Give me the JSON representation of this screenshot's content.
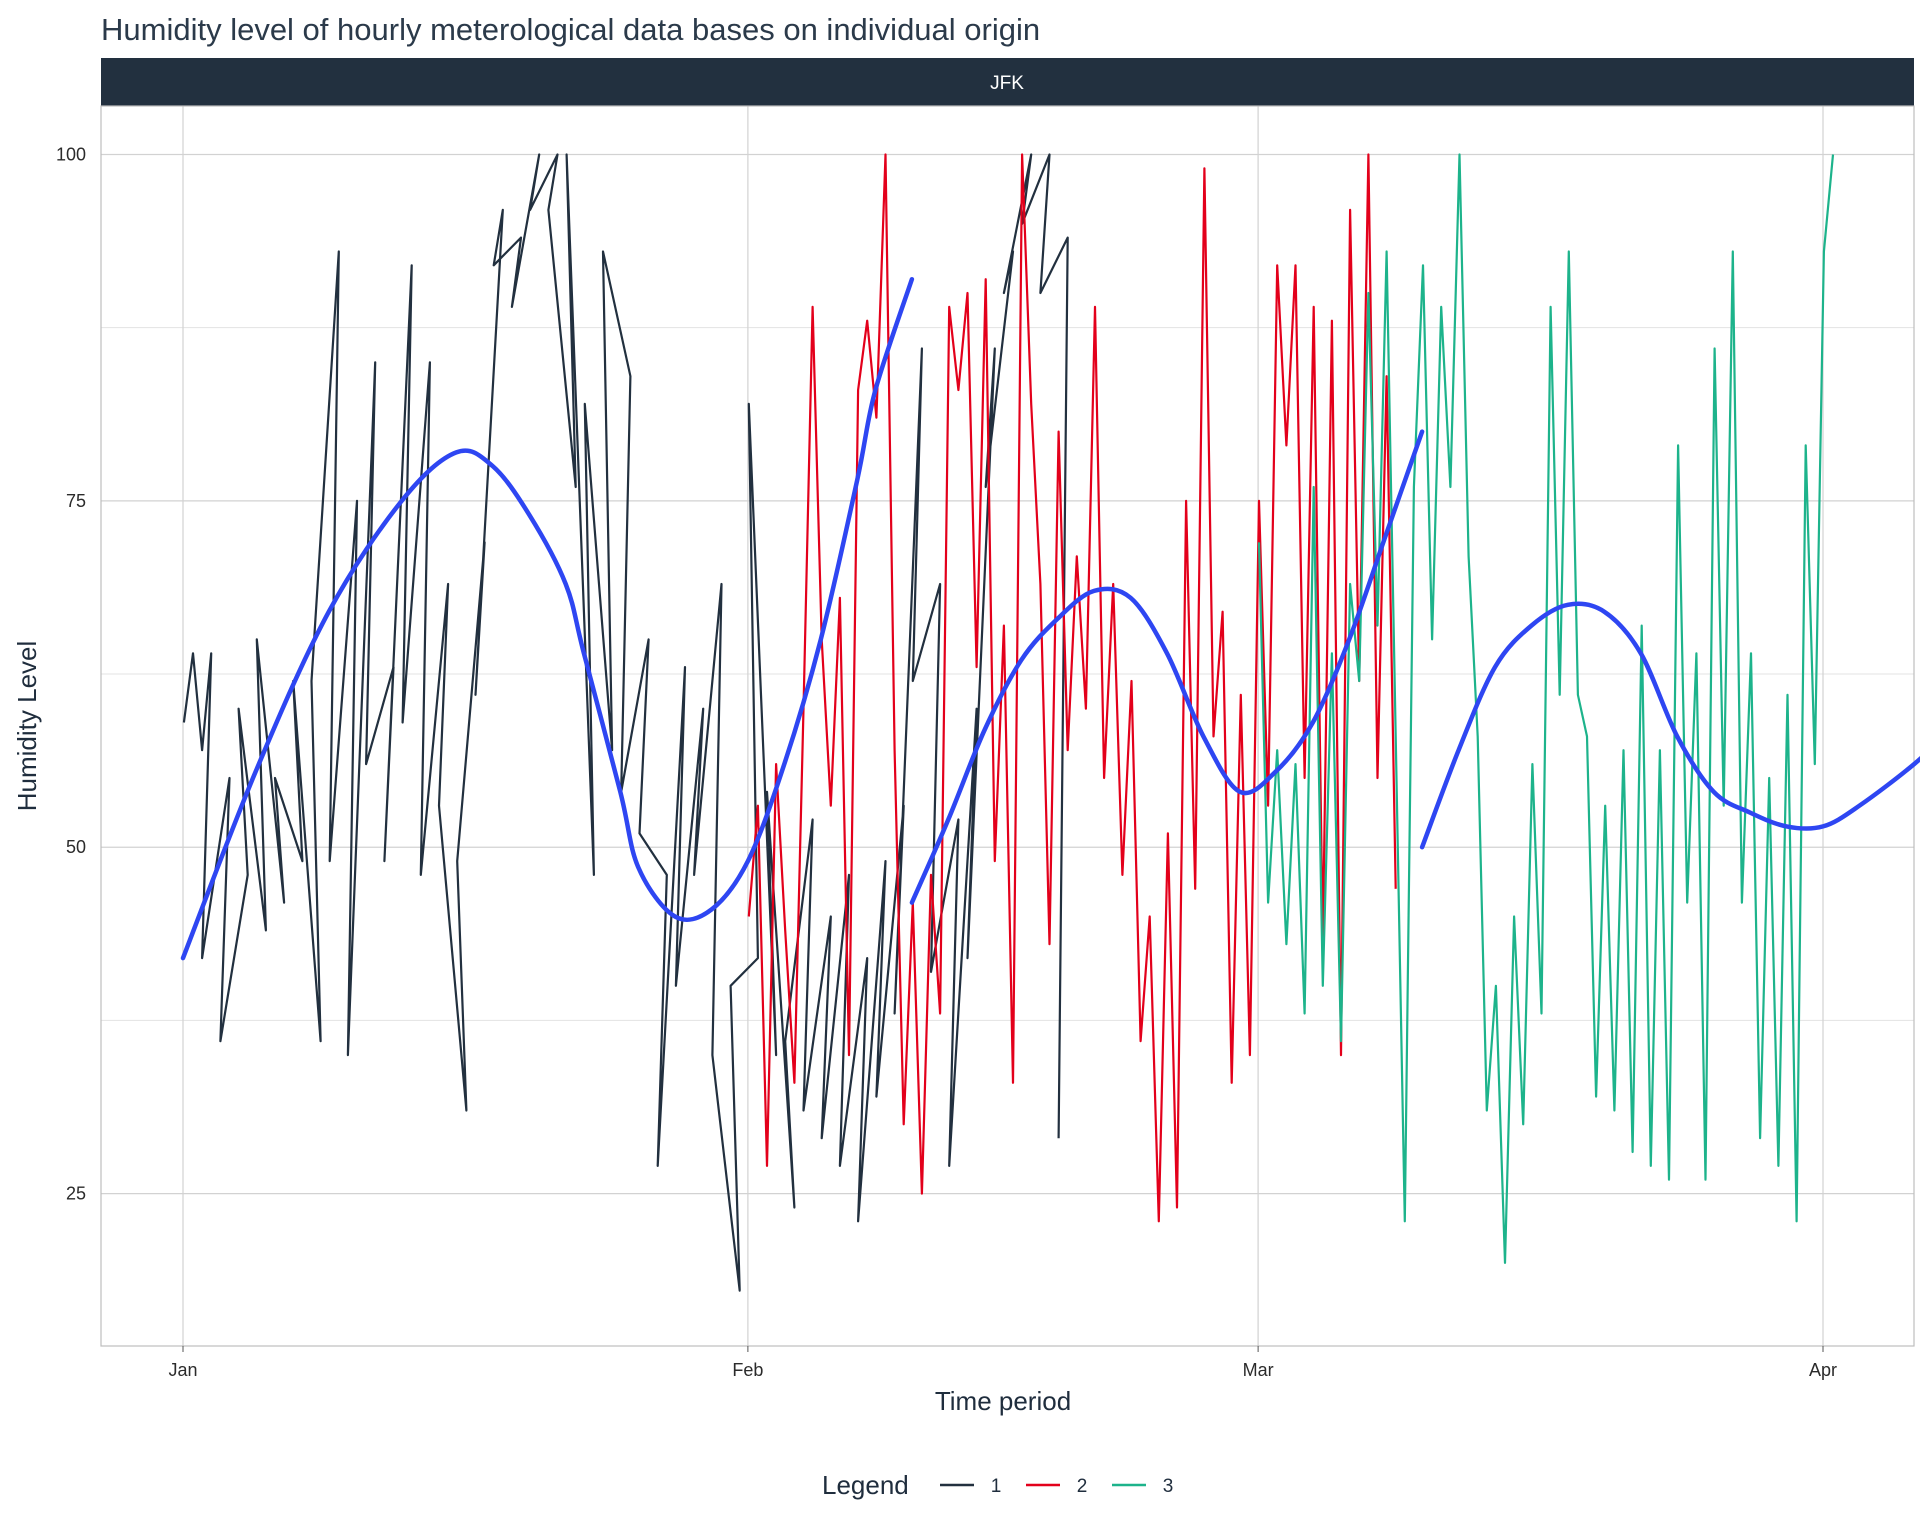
{
  "chart_data": {
    "type": "line",
    "title": "Humidity level of hourly meterological data bases on individual origin",
    "facet": "JFK",
    "xlabel": "Time period",
    "ylabel": "Humidity Level",
    "x_ticks": [
      "Jan",
      "Feb",
      "Mar",
      "Apr"
    ],
    "x_range": [
      "2013-01-01",
      "2013-04-01"
    ],
    "y_ticks": [
      25,
      50,
      75,
      100
    ],
    "ylim": [
      14,
      103.5
    ],
    "grid": true,
    "legend": {
      "title": "Legend",
      "position": "bottom"
    },
    "series": [
      {
        "name": "1",
        "color": "#22303f",
        "points": [
          [
            "2013-01-01",
            59
          ],
          [
            "2013-01-01",
            64
          ],
          [
            "2013-01-02",
            57
          ],
          [
            "2013-01-02",
            64
          ],
          [
            "2013-01-02",
            42
          ],
          [
            "2013-01-03",
            55
          ],
          [
            "2013-01-03",
            36
          ],
          [
            "2013-01-04",
            48
          ],
          [
            "2013-01-04",
            60
          ],
          [
            "2013-01-05",
            44
          ],
          [
            "2013-01-05",
            65
          ],
          [
            "2013-01-06",
            46
          ],
          [
            "2013-01-06",
            55
          ],
          [
            "2013-01-07",
            49
          ],
          [
            "2013-01-07",
            62
          ],
          [
            "2013-01-08",
            36
          ],
          [
            "2013-01-08",
            62
          ],
          [
            "2013-01-09",
            93
          ],
          [
            "2013-01-09",
            49
          ],
          [
            "2013-01-10",
            75
          ],
          [
            "2013-01-10",
            35
          ],
          [
            "2013-01-11",
            85
          ],
          [
            "2013-01-11",
            56
          ],
          [
            "2013-01-12",
            63
          ],
          [
            "2013-01-12",
            49
          ],
          [
            "2013-01-13",
            92
          ],
          [
            "2013-01-13",
            59
          ],
          [
            "2013-01-14",
            85
          ],
          [
            "2013-01-14",
            48
          ],
          [
            "2013-01-15",
            69
          ],
          [
            "2013-01-15",
            53
          ],
          [
            "2013-01-16",
            31
          ],
          [
            "2013-01-16",
            49
          ],
          [
            "2013-01-17",
            72
          ],
          [
            "2013-01-17",
            61
          ],
          [
            "2013-01-18",
            96
          ],
          [
            "2013-01-18",
            92
          ],
          [
            "2013-01-19",
            94
          ],
          [
            "2013-01-19",
            89
          ],
          [
            "2013-01-20",
            100
          ],
          [
            "2013-01-20",
            96
          ],
          [
            "2013-01-21",
            100
          ],
          [
            "2013-01-21",
            96
          ],
          [
            "2013-01-22",
            76
          ],
          [
            "2013-01-22",
            100
          ],
          [
            "2013-01-23",
            48
          ],
          [
            "2013-01-23",
            82
          ],
          [
            "2013-01-24",
            57
          ],
          [
            "2013-01-24",
            93
          ],
          [
            "2013-01-25",
            84
          ],
          [
            "2013-01-25",
            54
          ],
          [
            "2013-01-26",
            65
          ],
          [
            "2013-01-26",
            51
          ],
          [
            "2013-01-27",
            48
          ],
          [
            "2013-01-27",
            27
          ],
          [
            "2013-01-28",
            63
          ],
          [
            "2013-01-28",
            40
          ],
          [
            "2013-01-29",
            60
          ],
          [
            "2013-01-29",
            48
          ],
          [
            "2013-01-30",
            69
          ],
          [
            "2013-01-30",
            35
          ],
          [
            "2013-01-31",
            18
          ],
          [
            "2013-01-31",
            40
          ],
          [
            "2013-02-01",
            42
          ],
          [
            "2013-02-01",
            82
          ],
          [
            "2013-02-02",
            35
          ],
          [
            "2013-02-02",
            54
          ],
          [
            "2013-02-03",
            24
          ],
          [
            "2013-02-03",
            36
          ],
          [
            "2013-02-04",
            52
          ],
          [
            "2013-02-04",
            31
          ],
          [
            "2013-02-05",
            45
          ],
          [
            "2013-02-05",
            29
          ],
          [
            "2013-02-06",
            48
          ],
          [
            "2013-02-06",
            27
          ],
          [
            "2013-02-07",
            42
          ],
          [
            "2013-02-07",
            23
          ],
          [
            "2013-02-08",
            49
          ],
          [
            "2013-02-08",
            32
          ],
          [
            "2013-02-09",
            53
          ],
          [
            "2013-02-09",
            38
          ],
          [
            "2013-02-10",
            86
          ],
          [
            "2013-02-10",
            62
          ],
          [
            "2013-02-11",
            69
          ],
          [
            "2013-02-11",
            41
          ],
          [
            "2013-02-12",
            52
          ],
          [
            "2013-02-12",
            27
          ],
          [
            "2013-02-13",
            60
          ],
          [
            "2013-02-13",
            42
          ],
          [
            "2013-02-14",
            86
          ],
          [
            "2013-02-14",
            76
          ],
          [
            "2013-02-15",
            93
          ],
          [
            "2013-02-15",
            90
          ],
          [
            "2013-02-16",
            100
          ],
          [
            "2013-02-16",
            95
          ],
          [
            "2013-02-17",
            100
          ],
          [
            "2013-02-17",
            90
          ],
          [
            "2013-02-18",
            94
          ],
          [
            "2013-02-18",
            29
          ]
        ]
      },
      {
        "name": "2",
        "color": "#e3001b",
        "points": [
          [
            "2013-02-01",
            45
          ],
          [
            "2013-02-01",
            53
          ],
          [
            "2013-02-02",
            27
          ],
          [
            "2013-02-02",
            56
          ],
          [
            "2013-02-03",
            44
          ],
          [
            "2013-02-03",
            33
          ],
          [
            "2013-02-04",
            60
          ],
          [
            "2013-02-04",
            89
          ],
          [
            "2013-02-05",
            65
          ],
          [
            "2013-02-05",
            53
          ],
          [
            "2013-02-06",
            68
          ],
          [
            "2013-02-06",
            35
          ],
          [
            "2013-02-07",
            83
          ],
          [
            "2013-02-07",
            88
          ],
          [
            "2013-02-08",
            81
          ],
          [
            "2013-02-08",
            100
          ],
          [
            "2013-02-09",
            57
          ],
          [
            "2013-02-09",
            30
          ],
          [
            "2013-02-10",
            46
          ],
          [
            "2013-02-10",
            25
          ],
          [
            "2013-02-11",
            48
          ],
          [
            "2013-02-11",
            38
          ],
          [
            "2013-02-12",
            89
          ],
          [
            "2013-02-12",
            83
          ],
          [
            "2013-02-13",
            90
          ],
          [
            "2013-02-13",
            63
          ],
          [
            "2013-02-14",
            91
          ],
          [
            "2013-02-14",
            49
          ],
          [
            "2013-02-15",
            66
          ],
          [
            "2013-02-15",
            33
          ],
          [
            "2013-02-16",
            100
          ],
          [
            "2013-02-16",
            82
          ],
          [
            "2013-02-17",
            69
          ],
          [
            "2013-02-17",
            43
          ],
          [
            "2013-02-18",
            80
          ],
          [
            "2013-02-18",
            57
          ],
          [
            "2013-02-19",
            71
          ],
          [
            "2013-02-19",
            60
          ],
          [
            "2013-02-20",
            89
          ],
          [
            "2013-02-20",
            55
          ],
          [
            "2013-02-21",
            69
          ],
          [
            "2013-02-21",
            48
          ],
          [
            "2013-02-22",
            62
          ],
          [
            "2013-02-22",
            36
          ],
          [
            "2013-02-23",
            45
          ],
          [
            "2013-02-23",
            23
          ],
          [
            "2013-02-24",
            51
          ],
          [
            "2013-02-24",
            24
          ],
          [
            "2013-02-25",
            75
          ],
          [
            "2013-02-25",
            47
          ],
          [
            "2013-02-26",
            99
          ],
          [
            "2013-02-26",
            58
          ],
          [
            "2013-02-27",
            67
          ],
          [
            "2013-02-27",
            33
          ],
          [
            "2013-02-28",
            61
          ],
          [
            "2013-02-28",
            35
          ],
          [
            "2013-03-01",
            75
          ],
          [
            "2013-03-01",
            53
          ],
          [
            "2013-03-02",
            92
          ],
          [
            "2013-03-02",
            79
          ],
          [
            "2013-03-03",
            92
          ],
          [
            "2013-03-03",
            55
          ],
          [
            "2013-03-04",
            89
          ],
          [
            "2013-03-04",
            43
          ],
          [
            "2013-03-05",
            88
          ],
          [
            "2013-03-05",
            35
          ],
          [
            "2013-03-06",
            96
          ],
          [
            "2013-03-06",
            62
          ],
          [
            "2013-03-07",
            100
          ],
          [
            "2013-03-07",
            55
          ],
          [
            "2013-03-08",
            84
          ],
          [
            "2013-03-08",
            47
          ]
        ]
      },
      {
        "name": "3",
        "color": "#1db38b",
        "points": [
          [
            "2013-03-01",
            72
          ],
          [
            "2013-03-01",
            46
          ],
          [
            "2013-03-02",
            57
          ],
          [
            "2013-03-02",
            43
          ],
          [
            "2013-03-03",
            56
          ],
          [
            "2013-03-03",
            38
          ],
          [
            "2013-03-04",
            76
          ],
          [
            "2013-03-04",
            40
          ],
          [
            "2013-03-05",
            64
          ],
          [
            "2013-03-05",
            36
          ],
          [
            "2013-03-06",
            69
          ],
          [
            "2013-03-06",
            62
          ],
          [
            "2013-03-07",
            90
          ],
          [
            "2013-03-07",
            66
          ],
          [
            "2013-03-08",
            93
          ],
          [
            "2013-03-08",
            58
          ],
          [
            "2013-03-09",
            23
          ],
          [
            "2013-03-09",
            76
          ],
          [
            "2013-03-10",
            92
          ],
          [
            "2013-03-10",
            65
          ],
          [
            "2013-03-11",
            89
          ],
          [
            "2013-03-11",
            76
          ],
          [
            "2013-03-12",
            100
          ],
          [
            "2013-03-12",
            71
          ],
          [
            "2013-03-13",
            58
          ],
          [
            "2013-03-13",
            31
          ],
          [
            "2013-03-14",
            40
          ],
          [
            "2013-03-14",
            20
          ],
          [
            "2013-03-15",
            45
          ],
          [
            "2013-03-15",
            30
          ],
          [
            "2013-03-16",
            56
          ],
          [
            "2013-03-16",
            38
          ],
          [
            "2013-03-17",
            89
          ],
          [
            "2013-03-17",
            61
          ],
          [
            "2013-03-18",
            93
          ],
          [
            "2013-03-18",
            61
          ],
          [
            "2013-03-19",
            58
          ],
          [
            "2013-03-19",
            32
          ],
          [
            "2013-03-20",
            53
          ],
          [
            "2013-03-20",
            31
          ],
          [
            "2013-03-21",
            57
          ],
          [
            "2013-03-21",
            28
          ],
          [
            "2013-03-22",
            66
          ],
          [
            "2013-03-22",
            27
          ],
          [
            "2013-03-23",
            57
          ],
          [
            "2013-03-23",
            26
          ],
          [
            "2013-03-24",
            79
          ],
          [
            "2013-03-24",
            46
          ],
          [
            "2013-03-25",
            64
          ],
          [
            "2013-03-25",
            26
          ],
          [
            "2013-03-26",
            86
          ],
          [
            "2013-03-26",
            53
          ],
          [
            "2013-03-27",
            93
          ],
          [
            "2013-03-27",
            46
          ],
          [
            "2013-03-28",
            64
          ],
          [
            "2013-03-28",
            29
          ],
          [
            "2013-03-29",
            55
          ],
          [
            "2013-03-29",
            27
          ],
          [
            "2013-03-30",
            61
          ],
          [
            "2013-03-30",
            23
          ],
          [
            "2013-03-31",
            79
          ],
          [
            "2013-03-31",
            56
          ],
          [
            "2013-04-01",
            93
          ],
          [
            "2013-04-01",
            100
          ]
        ]
      }
    ],
    "smooth_color": "#2e46f2",
    "smooth": [
      {
        "segment": "1",
        "points": [
          [
            "2013-01-01",
            42
          ],
          [
            "2013-01-05",
            55.5
          ],
          [
            "2013-01-09",
            67
          ],
          [
            "2013-01-13",
            75
          ],
          [
            "2013-01-16",
            78.5
          ],
          [
            "2013-01-18",
            77.5
          ],
          [
            "2013-01-20",
            74
          ],
          [
            "2013-01-22",
            69
          ],
          [
            "2013-01-23",
            64
          ],
          [
            "2013-01-25",
            54
          ],
          [
            "2013-01-26",
            48.5
          ],
          [
            "2013-01-28",
            45
          ],
          [
            "2013-01-30",
            45.5
          ],
          [
            "2013-02-01",
            49
          ],
          [
            "2013-02-03",
            56
          ],
          [
            "2013-02-05",
            65
          ],
          [
            "2013-02-07",
            76.5
          ],
          [
            "2013-02-08",
            83
          ],
          [
            "2013-02-10",
            91
          ]
        ]
      },
      {
        "segment": "2",
        "points": [
          [
            "2013-02-10",
            46
          ],
          [
            "2013-02-12",
            52
          ],
          [
            "2013-02-14",
            58.5
          ],
          [
            "2013-02-16",
            63.5
          ],
          [
            "2013-02-18",
            66.5
          ],
          [
            "2013-02-20",
            68.5
          ],
          [
            "2013-02-22",
            68
          ],
          [
            "2013-02-24",
            64
          ],
          [
            "2013-02-26",
            58
          ],
          [
            "2013-02-28",
            54
          ],
          [
            "2013-03-02",
            55.5
          ],
          [
            "2013-03-04",
            59
          ],
          [
            "2013-03-06",
            65
          ],
          [
            "2013-03-08",
            72.5
          ],
          [
            "2013-03-10",
            80
          ]
        ]
      },
      {
        "segment": "3",
        "points": [
          [
            "2013-03-10",
            50
          ],
          [
            "2013-03-12",
            57
          ],
          [
            "2013-03-14",
            63
          ],
          [
            "2013-03-16",
            66
          ],
          [
            "2013-03-18",
            67.5
          ],
          [
            "2013-03-20",
            67
          ],
          [
            "2013-03-22",
            64
          ],
          [
            "2013-03-24",
            58
          ],
          [
            "2013-03-26",
            54
          ],
          [
            "2013-03-28",
            52.5
          ],
          [
            "2013-03-30",
            51.5
          ],
          [
            "2013-04-01",
            51.5
          ],
          [
            "2013-04-03",
            53
          ],
          [
            "2013-04-06",
            56
          ],
          [
            "2013-04-08",
            58.5
          ]
        ]
      }
    ]
  }
}
